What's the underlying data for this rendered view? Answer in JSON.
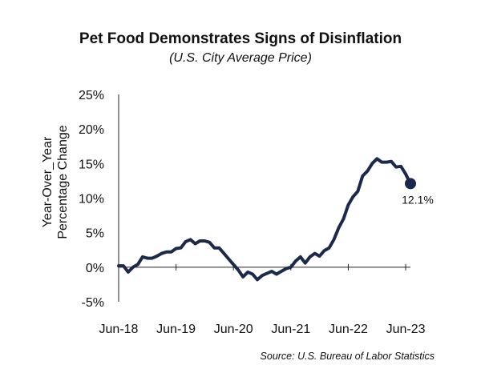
{
  "chart_data": {
    "type": "line",
    "title": "Pet Food Demonstrates Signs of Disinflation",
    "subtitle": "(U.S. City Average Price)",
    "ylabel_lines": [
      "Year-Over_Year",
      "Percentage Change"
    ],
    "xlabel": "",
    "source": "Source: U.S. Bureau of Labor Statistics",
    "y_ticks": [
      -5,
      0,
      5,
      10,
      15,
      20,
      25
    ],
    "y_tick_labels": [
      "-5%",
      "0%",
      "5%",
      "10%",
      "15%",
      "20%",
      "25%"
    ],
    "ylim": [
      -5,
      25
    ],
    "x_ticks": [
      0,
      12,
      24,
      36,
      48,
      60
    ],
    "x_tick_labels": [
      "Jun-18",
      "Jun-19",
      "Jun-20",
      "Jun-21",
      "Jun-22",
      "Jun-23"
    ],
    "grid": false,
    "line_color": "#1b2a4a",
    "series": [
      {
        "values": [
          0.2,
          0.2,
          -0.7,
          0.0,
          0.4,
          1.5,
          1.3,
          1.3,
          1.6,
          2.0,
          2.2,
          2.2,
          2.7,
          2.8,
          3.7,
          4.0,
          3.4,
          3.8,
          3.8,
          3.6,
          2.8,
          2.8,
          2.0,
          1.2,
          0.4,
          -0.4,
          -1.4,
          -0.7,
          -1.0,
          -1.8,
          -1.2,
          -0.9,
          -0.6,
          -1.0,
          -0.6,
          -0.2,
          0.0,
          0.9,
          1.5,
          0.6,
          1.5,
          2.0,
          1.6,
          2.4,
          2.8,
          4.0,
          5.7,
          7.0,
          9.0,
          10.2,
          11.0,
          13.2,
          13.9,
          15.0,
          15.7,
          15.2,
          15.2,
          15.3,
          14.5,
          14.6,
          13.5,
          12.1
        ]
      }
    ],
    "highlight": {
      "index": 61,
      "label": "12.1%"
    }
  }
}
